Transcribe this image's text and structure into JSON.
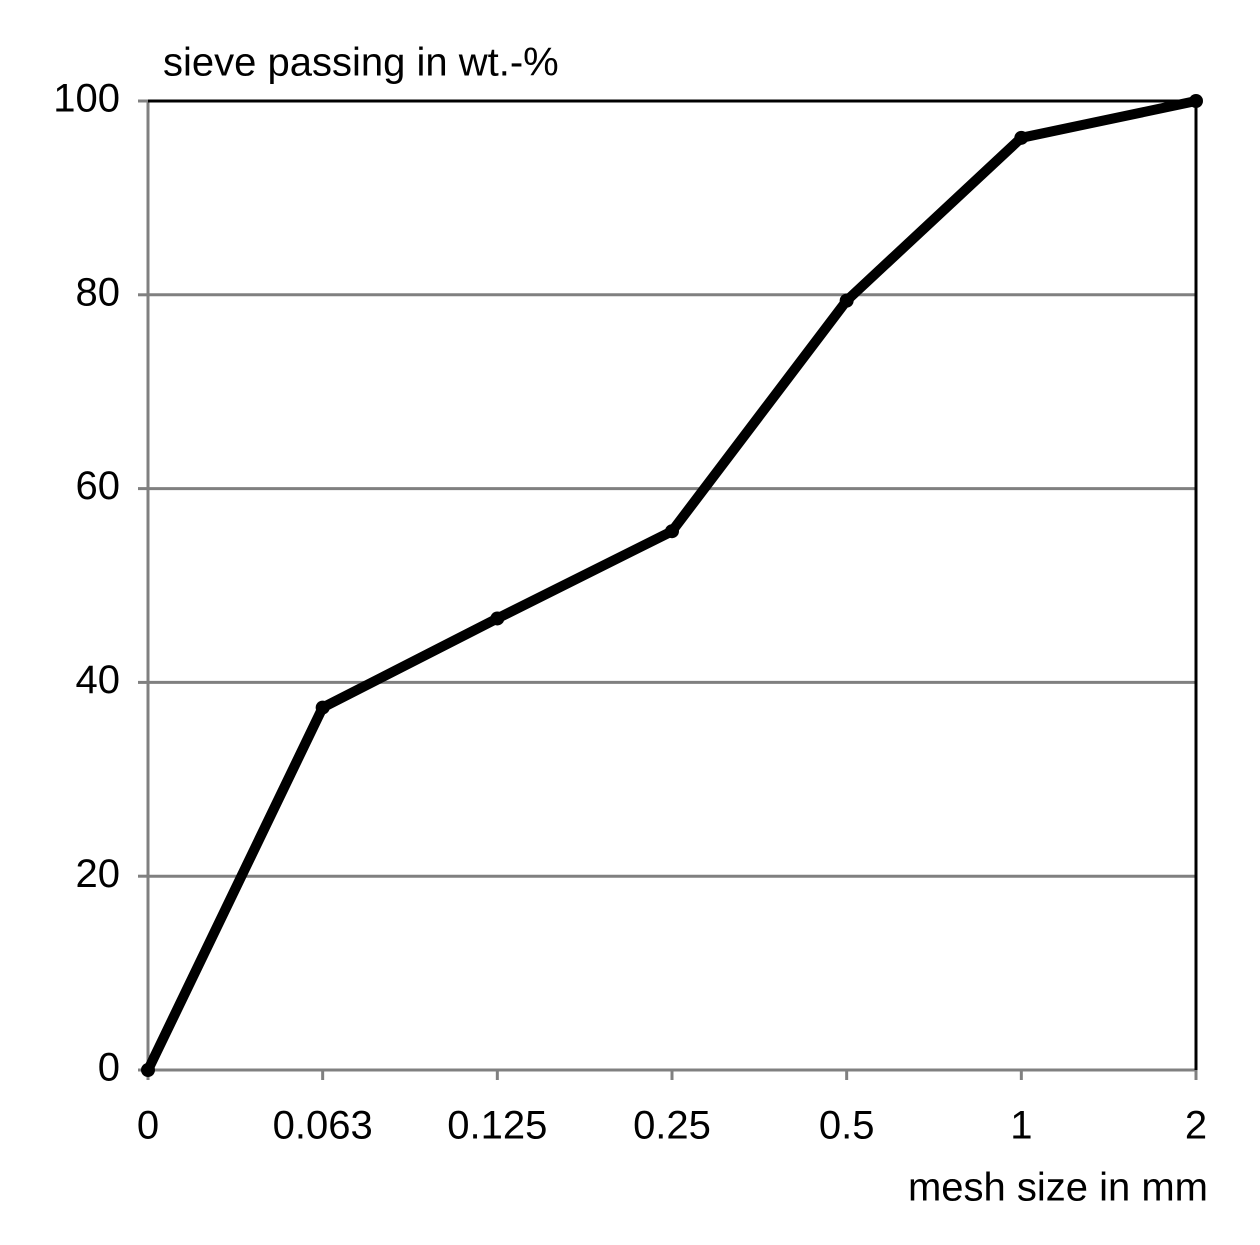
{
  "chart_data": {
    "type": "line",
    "title": "sieve passing in wt.-%",
    "x_label": "mesh size in mm",
    "categories": [
      "0",
      "0.063",
      "0.125",
      "0.25",
      "0.5",
      "1",
      "2"
    ],
    "values": [
      0,
      37.4,
      46.6,
      55.6,
      79.4,
      96.2,
      100
    ],
    "color": "#000000",
    "ylim": [
      0,
      100
    ],
    "yticks": [
      0,
      20,
      40,
      60,
      80,
      100
    ],
    "grid": true
  }
}
